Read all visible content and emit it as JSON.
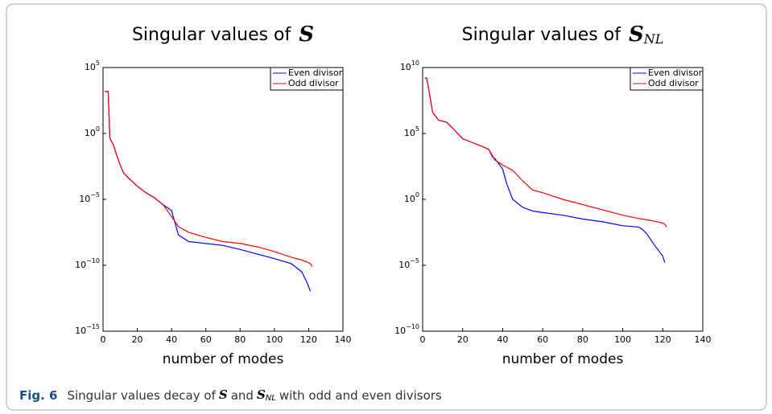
{
  "chart_data": [
    {
      "type": "line",
      "title": "Singular values of",
      "title_math": "S",
      "xlabel": "number of modes",
      "log_y": true,
      "legend": "northeast",
      "x": [
        1,
        3,
        4,
        6,
        8,
        10,
        12,
        15,
        20,
        25,
        30,
        35,
        40,
        44,
        50,
        60,
        70,
        80,
        90,
        100,
        110,
        116,
        119,
        121,
        122
      ],
      "series": [
        {
          "name": "Even divisor",
          "color": "#0000ff",
          "values": [
            1500.0,
            1500.0,
            0.43,
            0.14,
            0.022,
            0.004,
            0.001,
            0.0004,
            0.0001,
            3.2e-05,
            1.3e-05,
            4e-06,
            1.4e-06,
            2e-08,
            6.3e-09,
            4.5e-09,
            3.2e-09,
            1.6e-09,
            7e-10,
            3.2e-10,
            1.3e-10,
            3.2e-11,
            5e-12,
            1.1e-12,
            null
          ]
        },
        {
          "name": "Odd divisor",
          "color": "#ff0000",
          "values": [
            1500.0,
            1500.0,
            0.43,
            0.14,
            0.022,
            0.004,
            0.001,
            0.0004,
            0.0001,
            3.2e-05,
            1.3e-05,
            4e-06,
            5e-07,
            8.5e-08,
            3.2e-08,
            1.3e-08,
            6.3e-09,
            4.5e-09,
            2.5e-09,
            1.1e-09,
            4e-10,
            2.5e-10,
            1.8e-10,
            1.3e-10,
            8e-11
          ]
        }
      ],
      "xlim": [
        0,
        140
      ],
      "xticks": [
        0,
        20,
        40,
        60,
        80,
        100,
        120,
        140
      ],
      "ylim": [
        1e-15,
        100000.0
      ],
      "yticks": [
        {
          "value": 1e-15,
          "label": "10",
          "sup": "−15"
        },
        {
          "value": 1e-10,
          "label": "10",
          "sup": "−10"
        },
        {
          "value": 1e-05,
          "label": "10",
          "sup": "−5"
        },
        {
          "value": 1,
          "label": "10",
          "sup": "0"
        },
        {
          "value": 100000.0,
          "label": "10",
          "sup": "5"
        }
      ]
    },
    {
      "type": "line",
      "title": "Singular values of",
      "title_math": "S",
      "title_math_sub": "NL",
      "xlabel": "number of modes",
      "log_y": true,
      "legend": "northeast",
      "x": [
        1,
        2,
        3,
        5,
        8,
        12,
        15,
        20,
        25,
        30,
        33,
        35,
        36,
        40,
        42,
        45,
        50,
        55,
        60,
        70,
        80,
        90,
        100,
        108,
        110,
        112,
        116,
        120,
        121,
        122
      ],
      "series": [
        {
          "name": "Even divisor",
          "color": "#0000ff",
          "values": [
            1600000000.0,
            1600000000.0,
            250000000.0,
            4000000.0,
            1000000.0,
            700000.0,
            250000.0,
            40000.0,
            20000.0,
            10000.0,
            6300.0,
            1600.0,
            1300.0,
            200,
            16,
            1,
            0.25,
            0.13,
            0.1,
            0.063,
            0.032,
            0.02,
            0.01,
            0.008,
            0.005,
            0.0025,
            0.00032,
            5e-05,
            1.6e-05,
            null
          ]
        },
        {
          "name": "Odd divisor",
          "color": "#ff0000",
          "values": [
            1600000000.0,
            1600000000.0,
            250000000.0,
            4000000.0,
            1000000.0,
            700000.0,
            250000.0,
            40000.0,
            20000.0,
            10000.0,
            6300.0,
            2000.0,
            1000.0,
            400,
            280,
            160,
            25,
            5,
            3.2,
            1,
            0.4,
            0.16,
            0.063,
            0.035,
            0.032,
            0.028,
            0.022,
            0.016,
            0.013,
            0.008
          ]
        }
      ],
      "xlim": [
        0,
        140
      ],
      "xticks": [
        0,
        20,
        40,
        60,
        80,
        100,
        120,
        140
      ],
      "ylim": [
        1e-10,
        10000000000.0
      ],
      "yticks": [
        {
          "value": 1e-10,
          "label": "10",
          "sup": "−10"
        },
        {
          "value": 1e-05,
          "label": "10",
          "sup": "−5"
        },
        {
          "value": 1,
          "label": "10",
          "sup": "0"
        },
        {
          "value": 100000.0,
          "label": "10",
          "sup": "5"
        },
        {
          "value": 10000000000.0,
          "label": "10",
          "sup": "10"
        }
      ]
    }
  ],
  "caption": {
    "label": "Fig. 6",
    "text1": "Singular values decay of",
    "math1": "S",
    "text2": "and",
    "math2": "S",
    "math2_sub": "NL",
    "text3": "with odd and even divisors"
  }
}
